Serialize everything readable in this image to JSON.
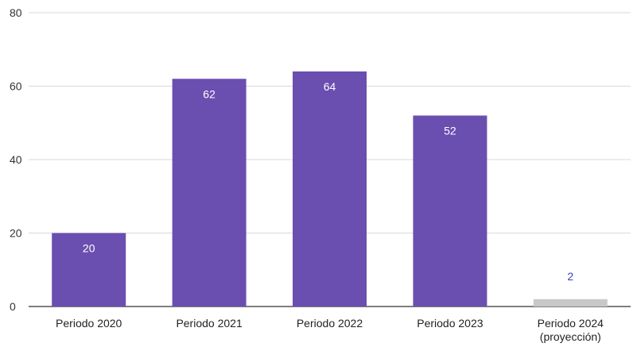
{
  "chart_data": {
    "type": "bar",
    "title": "",
    "xlabel": "",
    "ylabel": "",
    "ylim": [
      0,
      80
    ],
    "yticks": [
      0,
      20,
      40,
      60,
      80
    ],
    "grid": true,
    "categories": [
      [
        "Periodo 2020"
      ],
      [
        "Periodo 2021"
      ],
      [
        "Periodo 2022"
      ],
      [
        "Periodo 2023"
      ],
      [
        "Periodo 2024",
        "(proyección)"
      ]
    ],
    "values": [
      20,
      62,
      64,
      52,
      2
    ],
    "data_labels": [
      "20",
      "62",
      "64",
      "52",
      "2"
    ],
    "bar_colors": [
      "#6a4fb0",
      "#6a4fb0",
      "#6a4fb0",
      "#6a4fb0",
      "#c8c8c8"
    ],
    "label_colors": [
      "#ffffff",
      "#ffffff",
      "#ffffff",
      "#ffffff",
      "#3b3fb3"
    ],
    "label_position": [
      "inside",
      "inside",
      "inside",
      "inside",
      "above"
    ]
  }
}
